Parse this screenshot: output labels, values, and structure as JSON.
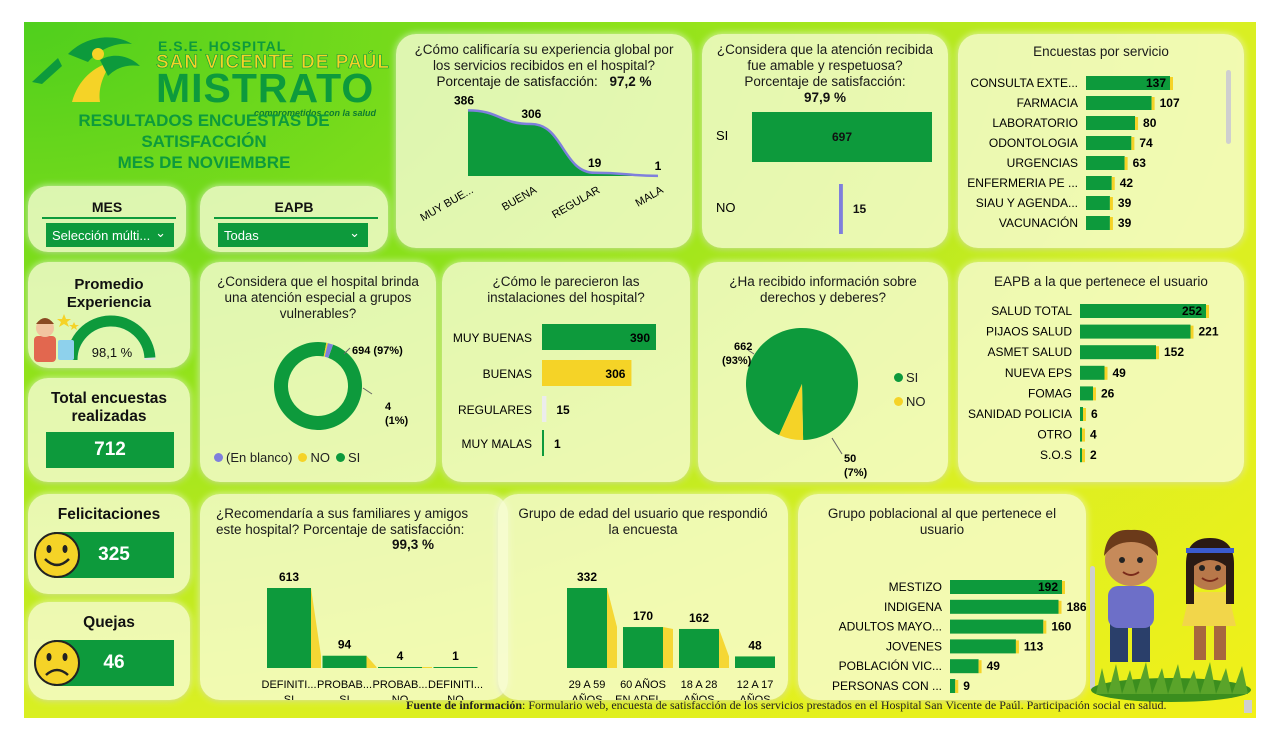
{
  "header": {
    "hospital_line1": "E.S.E. HOSPITAL",
    "hospital_line2": "SAN VICENTE DE PAÚL",
    "hospital_line3": "MISTRATO",
    "tagline": "comprometidos con la salud",
    "title_line1": "RESULTADOS ENCUESTAS DE",
    "title_line2": "SATISFACCIÓN",
    "title_line3": "MES DE NOVIEMBRE"
  },
  "filters": {
    "mes_label": "MES",
    "mes_value": "Selección múlti...",
    "eapb_label": "EAPB",
    "eapb_value": "Todas"
  },
  "kpis": {
    "promedio_title_1": "Promedio",
    "promedio_title_2": "Experiencia",
    "promedio_value": "98,1 %",
    "promedio_fraction": 0.981,
    "total_title_1": "Total encuestas",
    "total_title_2": "realizadas",
    "total_value": "712",
    "felicitaciones_title": "Felicitaciones",
    "felicitaciones_value": "325",
    "quejas_title": "Quejas",
    "quejas_value": "46"
  },
  "colors": {
    "green": "#0d9a3c",
    "yellow": "#f5d327",
    "lavender": "#7f7fdc",
    "light": "#ececec"
  },
  "source": {
    "label": "Fuente de información",
    "text": ": Formulario web, encuesta de satisfacción de los servicios prestados en el Hospital San Vicente de Paúl. Participación social en salud."
  },
  "chart_data": [
    {
      "id": "experiencia",
      "type": "area",
      "title_1": "¿Cómo calificaría su experiencia global por",
      "title_2": "los servicios recibidos en el hospital?",
      "subtitle": "Porcentaje de satisfacción:",
      "subtitle_value": "97,2 %",
      "categories": [
        "MUY BUE...",
        "BUENA",
        "REGULAR",
        "MALA"
      ],
      "values": [
        386,
        306,
        19,
        1
      ]
    },
    {
      "id": "amable",
      "type": "bar",
      "title_1": "¿Considera que la atención recibida",
      "title_2": "fue amable y respetuosa?",
      "subtitle": "Porcentaje de satisfacción:",
      "subtitle_value": "97,9 %",
      "categories": [
        "SI",
        "NO"
      ],
      "values": [
        697,
        15
      ]
    },
    {
      "id": "servicio",
      "type": "bar",
      "title": "Encuestas por servicio",
      "categories": [
        "CONSULTA EXTE...",
        "FARMACIA",
        "LABORATORIO",
        "ODONTOLOGIA",
        "URGENCIAS",
        "ENFERMERIA PE ...",
        "SIAU Y AGENDA...",
        "VACUNACIÓN"
      ],
      "values": [
        137,
        107,
        80,
        74,
        63,
        42,
        39,
        39
      ]
    },
    {
      "id": "vulnerables",
      "type": "pie",
      "title_1": "¿Considera que el hospital brinda",
      "title_2": "una atención especial a grupos",
      "title_3": "vulnerables?",
      "slices": [
        {
          "name": "SI",
          "value": 694,
          "label_1": "694 (97%)",
          "label_2": ""
        },
        {
          "name": "NO",
          "value": 4,
          "label_1": "4",
          "label_2": "(1%)"
        },
        {
          "name": "(En blanco)",
          "value": 14,
          "label_1": "",
          "label_2": ""
        }
      ],
      "legend": [
        "(En blanco)",
        "NO",
        "SI"
      ]
    },
    {
      "id": "instalaciones",
      "type": "bar",
      "title_1": "¿Cómo le parecieron las",
      "title_2": "instalaciones del hospital?",
      "categories": [
        "MUY BUENAS",
        "BUENAS",
        "REGULARES",
        "MUY MALAS"
      ],
      "values": [
        390,
        306,
        15,
        1
      ]
    },
    {
      "id": "derechos",
      "type": "pie",
      "title_1": "¿Ha recibido información sobre",
      "title_2": "derechos y deberes?",
      "slices": [
        {
          "name": "SI",
          "value": 662,
          "label_1": "662",
          "label_2": "(93%)"
        },
        {
          "name": "NO",
          "value": 50,
          "label_1": "50",
          "label_2": "(7%)"
        }
      ],
      "legend": [
        "SI",
        "NO"
      ]
    },
    {
      "id": "eapb",
      "type": "bar",
      "title": "EAPB a la que pertenece el usuario",
      "categories": [
        "SALUD TOTAL",
        "PIJAOS SALUD",
        "ASMET SALUD",
        "NUEVA EPS",
        "FOMAG",
        "SANIDAD POLICIA",
        "OTRO",
        "S.O.S"
      ],
      "values": [
        252,
        221,
        152,
        49,
        26,
        6,
        4,
        2
      ]
    },
    {
      "id": "recomendaria",
      "type": "bar",
      "title_1": "¿Recomendaría a sus familiares y amigos",
      "title_2": "este hospital? Porcentaje de satisfacción:",
      "subtitle_value": "99,3 %",
      "categories": [
        [
          "DEFINITI...",
          "SI"
        ],
        [
          "PROBAB...",
          "SI"
        ],
        [
          "PROBAB...",
          "NO"
        ],
        [
          "DEFINITI...",
          "NO"
        ]
      ],
      "values": [
        613,
        94,
        4,
        1
      ]
    },
    {
      "id": "edad",
      "type": "bar",
      "title_1": "Grupo de edad del usuario que respondió",
      "title_2": "la encuesta",
      "categories": [
        [
          "29 A 59",
          "AÑOS"
        ],
        [
          "60 AÑOS",
          "EN ADEL..."
        ],
        [
          "18 A 28",
          "AÑOS"
        ],
        [
          "12 A 17",
          "AÑOS"
        ]
      ],
      "values": [
        332,
        170,
        162,
        48
      ]
    },
    {
      "id": "poblacional",
      "type": "bar",
      "title_1": "Grupo poblacional al que pertenece el",
      "title_2": "usuario",
      "categories": [
        "MESTIZO",
        "INDIGENA",
        "ADULTOS MAYO...",
        "JOVENES",
        "POBLACIÓN VIC...",
        "PERSONAS CON ..."
      ],
      "values": [
        192,
        186,
        160,
        113,
        49,
        9
      ]
    }
  ]
}
